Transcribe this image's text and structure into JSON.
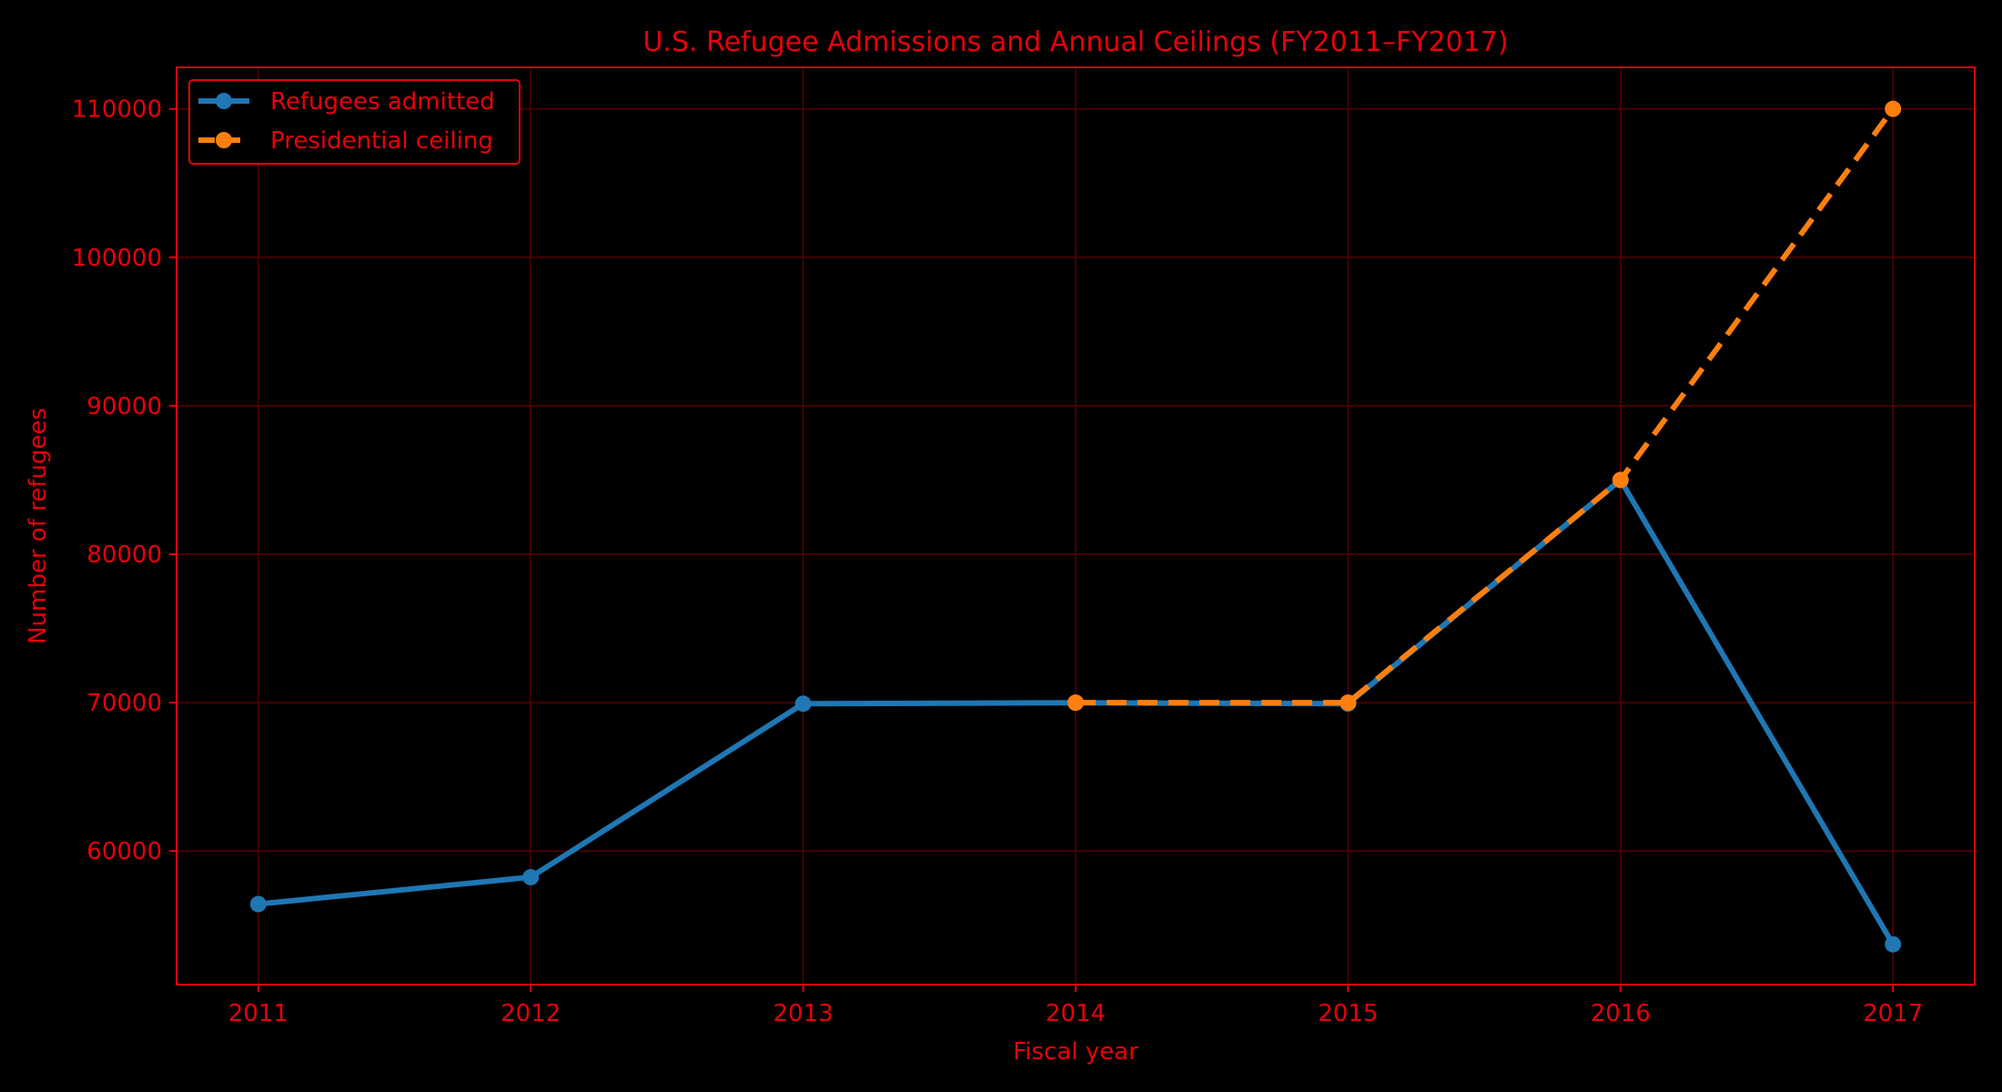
{
  "colors": {
    "background": "#000000",
    "text": "#e8000b",
    "axes": "#e8000b",
    "grid": "#5a0000"
  },
  "chart_data": {
    "type": "line",
    "title": "U.S. Refugee Admissions and Annual Ceilings (FY2011–FY2017)",
    "xlabel": "Fiscal year",
    "ylabel": "Number of refugees",
    "x": [
      2011,
      2012,
      2013,
      2014,
      2015,
      2016,
      2017
    ],
    "xlim": [
      2010.7,
      2017.3
    ],
    "ylim": [
      51000,
      112800
    ],
    "yticks": [
      60000,
      70000,
      80000,
      90000,
      100000,
      110000
    ],
    "grid": true,
    "legend_position": "top-left",
    "series": [
      {
        "name": "Refugees admitted",
        "values": [
          56424,
          58238,
          69926,
          69987,
          69933,
          84995,
          53716
        ],
        "color": "#1f77b4",
        "style": "solid"
      },
      {
        "name": "Presidential ceiling",
        "x": [
          2014,
          2015,
          2016,
          2017
        ],
        "values": [
          70000,
          70000,
          85000,
          110000
        ],
        "color": "#ff7f0e",
        "style": "dashed"
      }
    ]
  }
}
